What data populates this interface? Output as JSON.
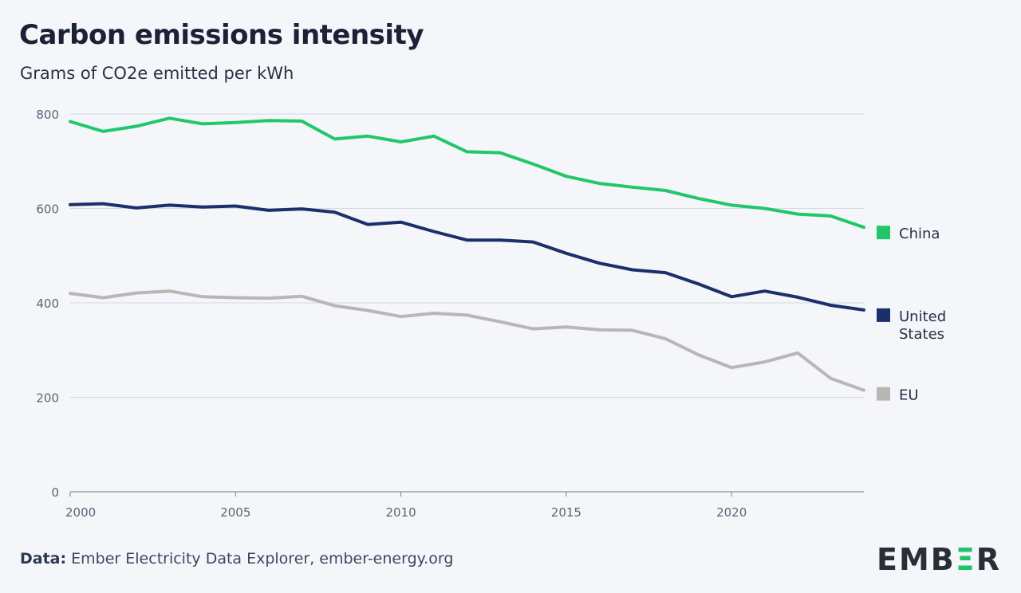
{
  "header": {
    "title": "Carbon emissions intensity",
    "subtitle": "Grams of CO2e emitted per kWh"
  },
  "footer": {
    "data_label": "Data:",
    "source": "Ember Electricity Data Explorer, ember-energy.org"
  },
  "logo": {
    "text_start": "EMB",
    "text_accent": "Ξ",
    "text_end": "R",
    "full": "EMBER"
  },
  "colors": {
    "china": "#22c76a",
    "united_states": "#1c2f6b",
    "eu": "#b9b6b3",
    "grid": "#d4d9e3",
    "axis_text": "#5b6478"
  },
  "chart_data": {
    "type": "line",
    "title": "Carbon emissions intensity",
    "subtitle": "Grams of CO2e emitted per kWh",
    "x": [
      2000,
      2001,
      2002,
      2003,
      2004,
      2005,
      2006,
      2007,
      2008,
      2009,
      2010,
      2011,
      2012,
      2013,
      2014,
      2015,
      2016,
      2017,
      2018,
      2019,
      2020,
      2021,
      2022,
      2023,
      2024
    ],
    "xlim": [
      2000,
      2024
    ],
    "xticks": [
      "2000",
      "2005",
      "2010",
      "2015",
      "2020"
    ],
    "ylim": [
      0,
      800
    ],
    "yticks": [
      "0",
      "200",
      "400",
      "600",
      "800"
    ],
    "grid": true,
    "legend_placement": "right, at line ends",
    "series": [
      {
        "name": "China",
        "color_key": "china",
        "values": [
          784,
          763,
          774,
          791,
          779,
          782,
          786,
          785,
          747,
          753,
          741,
          753,
          720,
          718,
          694,
          668,
          653,
          645,
          638,
          621,
          607,
          600,
          588,
          584,
          560
        ]
      },
      {
        "name": "United States",
        "label_lines": [
          "United",
          "States"
        ],
        "color_key": "united_states",
        "values": [
          608,
          610,
          601,
          607,
          603,
          605,
          596,
          599,
          592,
          566,
          571,
          551,
          533,
          533,
          529,
          505,
          484,
          470,
          464,
          440,
          413,
          425,
          412,
          395,
          385
        ]
      },
      {
        "name": "EU",
        "color_key": "eu",
        "values": [
          420,
          411,
          421,
          425,
          413,
          411,
          410,
          414,
          394,
          384,
          371,
          378,
          374,
          360,
          345,
          349,
          343,
          342,
          324,
          290,
          263,
          275,
          294,
          240,
          215
        ]
      }
    ]
  }
}
